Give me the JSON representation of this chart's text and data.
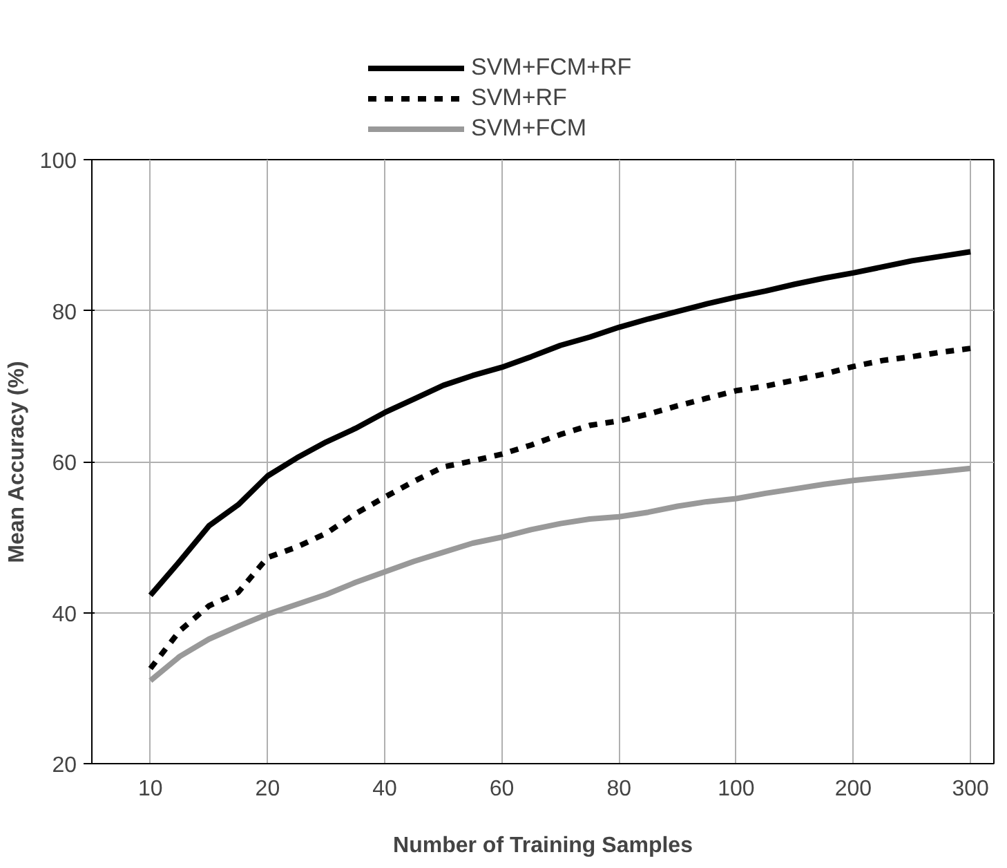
{
  "chart_data": {
    "type": "line",
    "xlabel": "Number of Training Samples",
    "ylabel": "Mean Accuracy (%)",
    "categories": [
      "10",
      null,
      null,
      null,
      "20",
      null,
      null,
      null,
      "40",
      null,
      null,
      null,
      "60",
      null,
      null,
      null,
      "80",
      null,
      null,
      null,
      "100",
      null,
      null,
      null,
      "200",
      null,
      null,
      null,
      "300"
    ],
    "ylim": [
      20,
      100
    ],
    "yticks": [
      20,
      40,
      60,
      80,
      100
    ],
    "grid": true,
    "legend": "top",
    "marker": "none",
    "series": [
      {
        "name": "SVM+FCM+RF",
        "color": "#000000",
        "line_style": "solid",
        "values": [
          42.3,
          46.8,
          51.5,
          54.3,
          58.1,
          60.5,
          62.6,
          64.4,
          66.5,
          68.3,
          70.1,
          71.4,
          72.5,
          73.9,
          75.4,
          76.5,
          77.8,
          78.9,
          79.9,
          80.9,
          81.8,
          82.6,
          83.5,
          84.3,
          85.0,
          85.8,
          86.6,
          87.2,
          87.8
        ]
      },
      {
        "name": "SVM+RF",
        "color": "#000000",
        "line_style": "dashed",
        "values": [
          32.6,
          37.6,
          40.9,
          42.7,
          47.3,
          48.7,
          50.5,
          53.1,
          55.3,
          57.4,
          59.3,
          60.1,
          61.0,
          62.2,
          63.6,
          64.8,
          65.4,
          66.3,
          67.4,
          68.4,
          69.4,
          70.0,
          70.8,
          71.6,
          72.6,
          73.4,
          73.9,
          74.5,
          75.0
        ]
      },
      {
        "name": "SVM+FCM",
        "color": "#999999",
        "line_style": "solid",
        "values": [
          31,
          34.2,
          36.5,
          38.2,
          39.8,
          41.1,
          42.4,
          44.0,
          45.4,
          46.8,
          48.0,
          49.2,
          50,
          51.0,
          51.8,
          52.4,
          52.7,
          53.3,
          54.1,
          54.7,
          55.1,
          55.8,
          56.4,
          57.0,
          57.5,
          57.9,
          58.3,
          58.7,
          59.1
        ]
      }
    ]
  }
}
